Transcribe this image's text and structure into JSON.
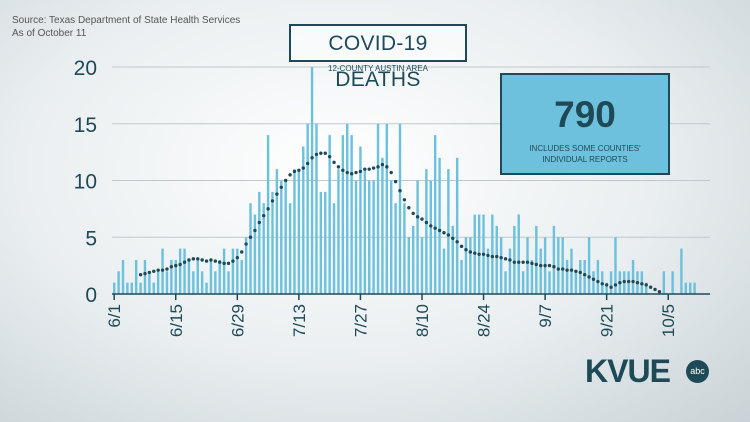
{
  "source": {
    "line1": "Source: Texas Department of State Health Services",
    "line2": "As of October 11"
  },
  "header": {
    "title": "COVID-19 DEATHS",
    "subtitle": "12-COUNTY AUSTIN AREA"
  },
  "total": {
    "value": "790",
    "note": "INCLUDES SOME COUNTIES' INDIVIDUAL REPORTS"
  },
  "logo": {
    "word": "KVUE",
    "badge": "abc"
  },
  "colors": {
    "bar": "#6ec1dc",
    "line": "#1e4a58",
    "text": "#1e4a58"
  },
  "chart_data": {
    "type": "bar",
    "title": "COVID-19 DEATHS",
    "subtitle": "12-COUNTY AUSTIN AREA",
    "xlabel": "",
    "ylabel": "",
    "ylim": [
      0,
      20
    ],
    "yticks": [
      "0",
      "5",
      "10",
      "15",
      "20"
    ],
    "grid": true,
    "legend": "none",
    "x_start": "6/1",
    "x_end": "10/10",
    "xtick_labels": [
      "6/1",
      "6/15",
      "6/29",
      "7/13",
      "7/27",
      "8/10",
      "8/24",
      "9/7",
      "9/21",
      "10/5"
    ],
    "xtick_days": [
      0,
      14,
      28,
      42,
      56,
      70,
      84,
      98,
      112,
      126
    ],
    "series": [
      {
        "name": "",
        "type": "bar",
        "values": [
          1,
          2,
          3,
          1,
          1,
          3,
          1,
          3,
          2,
          1,
          2,
          4,
          2,
          3,
          3,
          4,
          4,
          3,
          2,
          3,
          2,
          1,
          3,
          2,
          3,
          4,
          2,
          4,
          4,
          3,
          5,
          8,
          7,
          9,
          8,
          14,
          9,
          11,
          10,
          10,
          8,
          11,
          11,
          13,
          15,
          20,
          15,
          9,
          9,
          14,
          8,
          11,
          14,
          15,
          14,
          10,
          13,
          11,
          10,
          10,
          15,
          12,
          15,
          10,
          8,
          15,
          8,
          5,
          6,
          10,
          5,
          11,
          10,
          14,
          12,
          4,
          11,
          6,
          12,
          3,
          5,
          5,
          7,
          7,
          7,
          4,
          7,
          6,
          5,
          2,
          4,
          6,
          7,
          2,
          5,
          3,
          6,
          4,
          5,
          2,
          6,
          5,
          5,
          3,
          4,
          2,
          3,
          3,
          5,
          2,
          3,
          2,
          1,
          2,
          5,
          2,
          2,
          2,
          3,
          2,
          2,
          1,
          0,
          0,
          0,
          2,
          0,
          2,
          0,
          4,
          1,
          1,
          1,
          0,
          0,
          0
        ]
      },
      {
        "name": "",
        "type": "line",
        "style": "dotted",
        "start_day": 6,
        "values": [
          1.7,
          1.8,
          1.9,
          2.0,
          2.1,
          2.1,
          2.2,
          2.4,
          2.5,
          2.6,
          2.8,
          3.0,
          3.1,
          3.1,
          3.0,
          2.9,
          3.0,
          2.9,
          2.8,
          2.7,
          2.7,
          2.9,
          3.2,
          3.7,
          4.4,
          5.0,
          5.6,
          6.3,
          6.9,
          7.5,
          8.2,
          8.8,
          9.4,
          10.0,
          10.5,
          10.8,
          10.9,
          11.1,
          11.5,
          12.0,
          12.3,
          12.4,
          12.4,
          12.1,
          11.6,
          11.2,
          10.9,
          10.7,
          10.6,
          10.7,
          10.8,
          11.0,
          11.0,
          11.1,
          11.2,
          11.4,
          11.2,
          10.7,
          9.9,
          9.1,
          8.3,
          7.6,
          7.1,
          6.8,
          6.6,
          6.3,
          6.0,
          5.8,
          5.6,
          5.4,
          5.2,
          4.9,
          4.6,
          4.2,
          3.9,
          3.7,
          3.6,
          3.5,
          3.5,
          3.4,
          3.3,
          3.3,
          3.2,
          3.1,
          3.0,
          2.8,
          2.8,
          2.8,
          2.8,
          2.7,
          2.6,
          2.5,
          2.5,
          2.5,
          2.4,
          2.2,
          2.2,
          2.1,
          2.1,
          2.0,
          1.9,
          1.7,
          1.5,
          1.3,
          1.1,
          0.9,
          0.8,
          0.6,
          0.8,
          1.0,
          1.1,
          1.1,
          1.1,
          1.0,
          0.9,
          0.8,
          0.6,
          0.4,
          0.2
        ]
      }
    ]
  }
}
